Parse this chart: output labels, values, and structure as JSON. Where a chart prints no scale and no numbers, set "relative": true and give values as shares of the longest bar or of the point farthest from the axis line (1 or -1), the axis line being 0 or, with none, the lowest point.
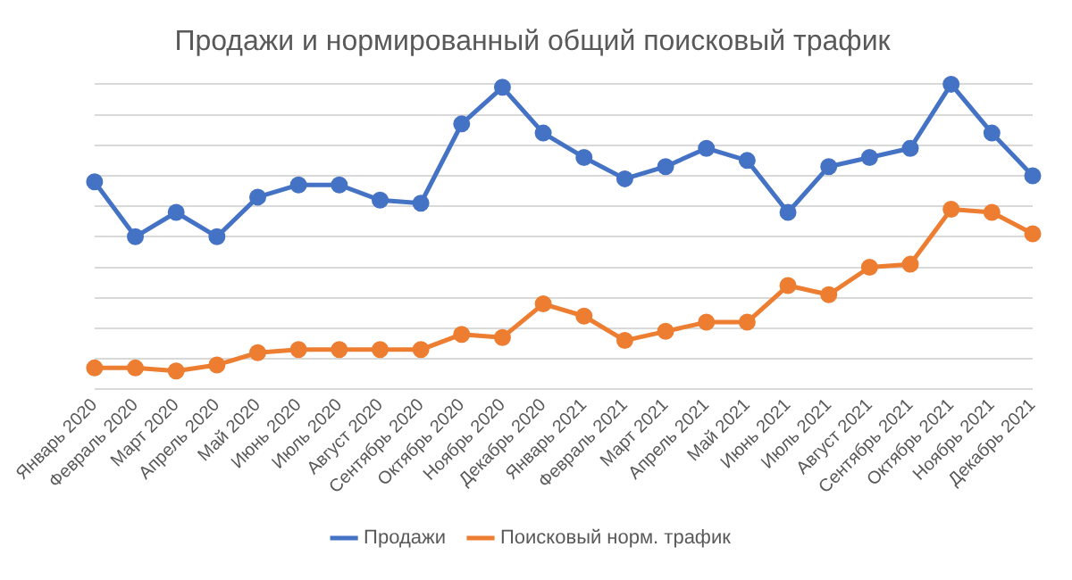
{
  "chart_data": {
    "type": "line",
    "title": "Продажи и нормированный общий поисковый трафик",
    "relative": true,
    "grid": "y",
    "legend": "bottom",
    "marker": "circle",
    "line_style": "solid",
    "categories": [
      "Январь 2020",
      "Февраль 2020",
      "Март 2020",
      "Апрель 2020",
      "Май 2020",
      "Июнь 2020",
      "Июль 2020",
      "Август 2020",
      "Сентябрь 2020",
      "Октябрь 2020",
      "Ноябрь 2020",
      "Декабрь 2020",
      "Январь 2021",
      "Февраль 2021",
      "Март 2021",
      "Апрель 2021",
      "Май 2021",
      "Июнь 2021",
      "Июль 2021",
      "Август 2021",
      "Сентябрь 2021",
      "Октябрь 2021",
      "Ноябрь 2021",
      "Декабрь 2021"
    ],
    "series": [
      {
        "name": "Продажи",
        "color": "#4472c4",
        "values": [
          0.68,
          0.5,
          0.58,
          0.5,
          0.63,
          0.67,
          0.67,
          0.62,
          0.61,
          0.87,
          0.99,
          0.84,
          0.76,
          0.69,
          0.73,
          0.79,
          0.75,
          0.58,
          0.73,
          0.76,
          0.79,
          1,
          0.84,
          0.7
        ]
      },
      {
        "name": "Поисковый норм. трафик",
        "color": "#ed7d31",
        "values": [
          0.07,
          0.07,
          0.06,
          0.08,
          0.12,
          0.13,
          0.13,
          0.13,
          0.13,
          0.18,
          0.17,
          0.28,
          0.24,
          0.16,
          0.19,
          0.22,
          0.22,
          0.34,
          0.31,
          0.4,
          0.41,
          0.59,
          0.58,
          0.51
        ]
      }
    ]
  }
}
